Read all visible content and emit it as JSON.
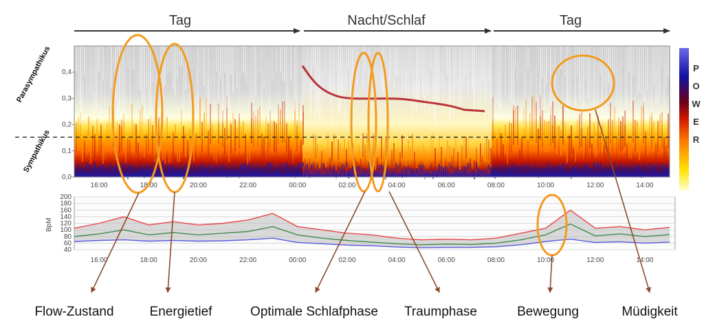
{
  "chart_data": [
    {
      "type": "heatmap",
      "title": "",
      "phases": [
        {
          "label": "Tag",
          "start": "15:00",
          "end": "23:59"
        },
        {
          "label": "Nacht/Schlaf",
          "start": "00:00",
          "end": "07:45"
        },
        {
          "label": "Tag",
          "start": "07:45",
          "end": "14:59"
        }
      ],
      "ylabel_top": "Parasympathikus",
      "ylabel_bottom": "Sympathikus",
      "yticks": [
        "0,0",
        "0,1",
        "0,2",
        "0,3",
        "0,4"
      ],
      "ylim": [
        0,
        0.5
      ],
      "xticks": [
        "16:00",
        "18:00",
        "20:00",
        "22:00",
        "00:00",
        "02:00",
        "04:00",
        "06:00",
        "08:00",
        "10:00",
        "12:00",
        "14:00"
      ],
      "threshold": 0.15,
      "colorbar_label": "POWER",
      "colorbar_colors": [
        "#ffffd0",
        "#ffe000",
        "#ff7a00",
        "#d21a00",
        "#6a0018",
        "#1010a0",
        "#6a6ae8"
      ],
      "annotations": [
        {
          "label": "Flow-Zustand",
          "time": "17:20"
        },
        {
          "label": "Energietief",
          "time": "19:00"
        },
        {
          "label": "Optimale Schlafphase",
          "time": "02:40"
        },
        {
          "label": "Traumphase",
          "time": "03:10"
        },
        {
          "label": "Bewegung",
          "time": "10:10"
        },
        {
          "label": "Müdigkeit",
          "time": "11:40"
        }
      ]
    },
    {
      "type": "line",
      "ylabel": "BpM",
      "yticks": [
        "40",
        "60",
        "80",
        "100",
        "120",
        "140",
        "160",
        "180",
        "200"
      ],
      "ylim": [
        40,
        200
      ],
      "xticks": [
        "16:00",
        "18:00",
        "20:00",
        "22:00",
        "00:00",
        "02:00",
        "04:00",
        "06:00",
        "08:00",
        "10:00",
        "12:00",
        "14:00"
      ],
      "hours": [
        15,
        16,
        17,
        18,
        19,
        20,
        21,
        22,
        23,
        24,
        25,
        26,
        27,
        28,
        29,
        30,
        31,
        32,
        33,
        34,
        35,
        36,
        37,
        38,
        39
      ],
      "series": [
        {
          "color": "#e8454a",
          "values": [
            105,
            120,
            140,
            115,
            125,
            115,
            120,
            130,
            150,
            110,
            100,
            90,
            85,
            75,
            70,
            72,
            70,
            75,
            90,
            105,
            160,
            105,
            110,
            100,
            108
          ]
        },
        {
          "color": "#3e8a4e",
          "values": [
            80,
            88,
            100,
            85,
            92,
            85,
            90,
            95,
            110,
            85,
            75,
            68,
            63,
            58,
            55,
            57,
            56,
            60,
            70,
            85,
            118,
            82,
            88,
            80,
            86
          ]
        },
        {
          "color": "#5a5ae0",
          "values": [
            65,
            68,
            70,
            66,
            68,
            66,
            67,
            70,
            75,
            62,
            58,
            54,
            52,
            48,
            46,
            47,
            47,
            49,
            55,
            65,
            72,
            62,
            64,
            60,
            63
          ]
        }
      ]
    }
  ]
}
